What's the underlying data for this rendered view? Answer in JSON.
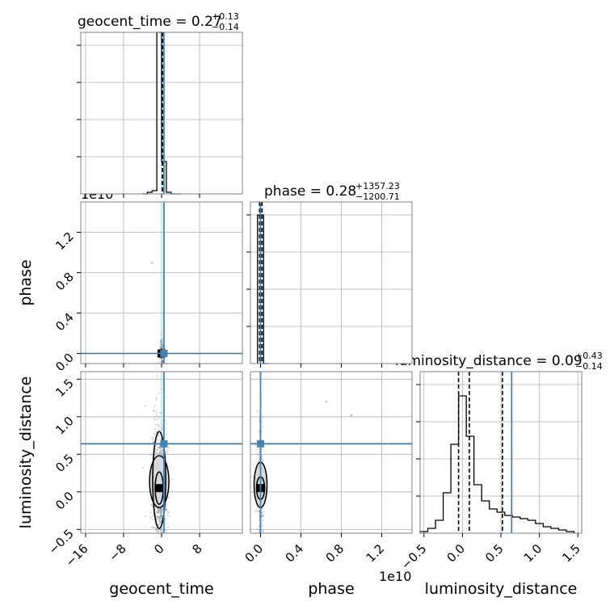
{
  "figure": {
    "type": "corner_plot"
  },
  "chart_data": [
    {
      "type": "histogram",
      "panel": "geocent_time",
      "title": {
        "main": "geocent_time = 0.27",
        "sup": "+0.13",
        "sub": "−0.14"
      },
      "xlim": [
        -17,
        17
      ],
      "ylim": [
        0,
        1.0
      ],
      "bins": {
        "edges": [
          -4,
          -3,
          -2,
          -1,
          0,
          1,
          2,
          3,
          4
        ],
        "counts": [
          0.0,
          0.01,
          0.02,
          1.0,
          0.2,
          0.01,
          0.0,
          0.0
        ]
      },
      "quantiles": [
        0.13,
        0.27,
        0.4
      ],
      "truth": 0.5,
      "grid": true
    },
    {
      "type": "histogram",
      "panel": "phase",
      "title": {
        "main": "phase = 0.28",
        "sup": "+1357.23",
        "sub": "−1200.71"
      },
      "xlim": [
        -0.1,
        1.5
      ],
      "ylim": [
        0,
        1.0
      ],
      "bins": {
        "edges": [
          -0.03,
          0.03,
          0.08
        ],
        "counts": [
          0.92,
          0.0
        ]
      },
      "quantiles": [
        -0.01,
        0.0,
        0.015
      ],
      "truth": 0.0,
      "grid": true
    },
    {
      "type": "histogram",
      "panel": "luminosity_distance",
      "title": {
        "main": "luminosity_distance = 0.09",
        "sup": "+0.43",
        "sub": "−0.14"
      },
      "xlim": [
        -0.55,
        1.55
      ],
      "ylim": [
        0,
        1.0
      ],
      "bins": {
        "edges": [
          -0.55,
          -0.45,
          -0.35,
          -0.25,
          -0.15,
          -0.05,
          0.05,
          0.15,
          0.25,
          0.35,
          0.45,
          0.55,
          0.65,
          0.75,
          0.85,
          0.95,
          1.05,
          1.15,
          1.25,
          1.35,
          1.45
        ],
        "counts": [
          0.01,
          0.03,
          0.08,
          0.25,
          0.55,
          0.85,
          0.6,
          0.3,
          0.2,
          0.15,
          0.13,
          0.11,
          0.1,
          0.09,
          0.08,
          0.06,
          0.04,
          0.03,
          0.02,
          0.01
        ]
      },
      "quantiles": [
        -0.05,
        0.09,
        0.52
      ],
      "truth": 0.64,
      "grid": true
    },
    {
      "type": "scatter_density",
      "panel": "geocent_time_vs_phase",
      "xlim": [
        -17,
        17
      ],
      "ylim": [
        -0.1,
        1.5
      ],
      "truth": {
        "x": 0.5,
        "y": 0.0
      },
      "center": {
        "x": 0.0,
        "y": 0.0
      },
      "outliers": [
        {
          "x": -2.0,
          "y": 0.9
        }
      ],
      "grid": true
    },
    {
      "type": "scatter_density",
      "panel": "geocent_time_vs_luminosity_distance",
      "xlim": [
        -17,
        17
      ],
      "ylim": [
        -0.55,
        1.6
      ],
      "truth": {
        "x": 0.5,
        "y": 0.64
      },
      "center": {
        "x": -0.5,
        "y": 0.05
      },
      "grid": true
    },
    {
      "type": "scatter_density",
      "panel": "phase_vs_luminosity_distance",
      "xlim": [
        -0.1,
        1.5
      ],
      "ylim": [
        -0.55,
        1.6
      ],
      "truth": {
        "x": 0.0,
        "y": 0.64
      },
      "center": {
        "x": 0.0,
        "y": 0.05
      },
      "outliers": [
        {
          "x": 0.65,
          "y": 1.2
        },
        {
          "x": 0.9,
          "y": 1.02
        }
      ],
      "grid": true
    }
  ],
  "axes": {
    "geocent_time": {
      "label": "geocent_time",
      "ticks": [
        -16,
        -8,
        0,
        8
      ],
      "tick_labels": [
        "−16",
        "−8",
        "0",
        "8"
      ]
    },
    "phase": {
      "label": "phase",
      "ticks": [
        0.0,
        0.4,
        0.8,
        1.2
      ],
      "tick_labels": [
        "0.0",
        "0.4",
        "0.8",
        "1.2"
      ],
      "offset": "1e10"
    },
    "luminosity_distance_y": {
      "label": "luminosity_distance",
      "ticks": [
        -0.5,
        0.0,
        0.5,
        1.0,
        1.5
      ],
      "tick_labels": [
        "−0.5",
        "0.0",
        "0.5",
        "1.0",
        "1.5"
      ]
    },
    "luminosity_distance_x": {
      "label": "luminosity_distance",
      "ticks": [
        -0.5,
        0.0,
        0.5,
        1.0,
        1.5
      ],
      "tick_labels": [
        "−0.5",
        "0.0",
        "0.5",
        "1.0",
        "1.5"
      ]
    }
  },
  "colors": {
    "truth": "#4682b4",
    "hist": "#000000",
    "grid": "#b0b0b0",
    "spine": "#808080",
    "points": "#444444"
  }
}
